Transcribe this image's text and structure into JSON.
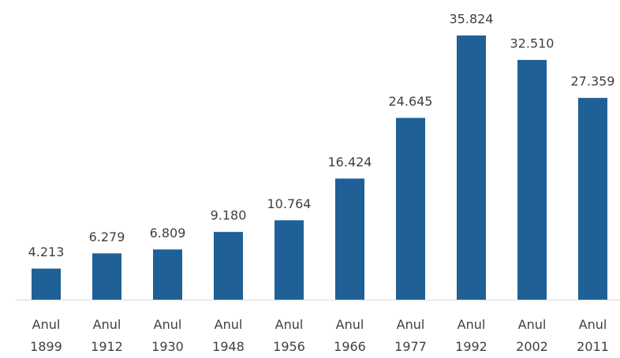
{
  "chart_data": {
    "type": "bar",
    "categories": [
      "Anul 1899",
      "Anul 1912",
      "Anul 1930",
      "Anul 1948",
      "Anul 1956",
      "Anul 1966",
      "Anul 1977",
      "Anul 1992",
      "Anul 2002",
      "Anul 2011"
    ],
    "values": [
      4213,
      6279,
      6809,
      9180,
      10764,
      16424,
      24645,
      35824,
      32510,
      27359
    ],
    "value_labels": [
      "4.213",
      "6.279",
      "6.809",
      "9.180",
      "10.764",
      "16.424",
      "24.645",
      "35.824",
      "32.510",
      "27.359"
    ],
    "color": "#1f6096"
  }
}
